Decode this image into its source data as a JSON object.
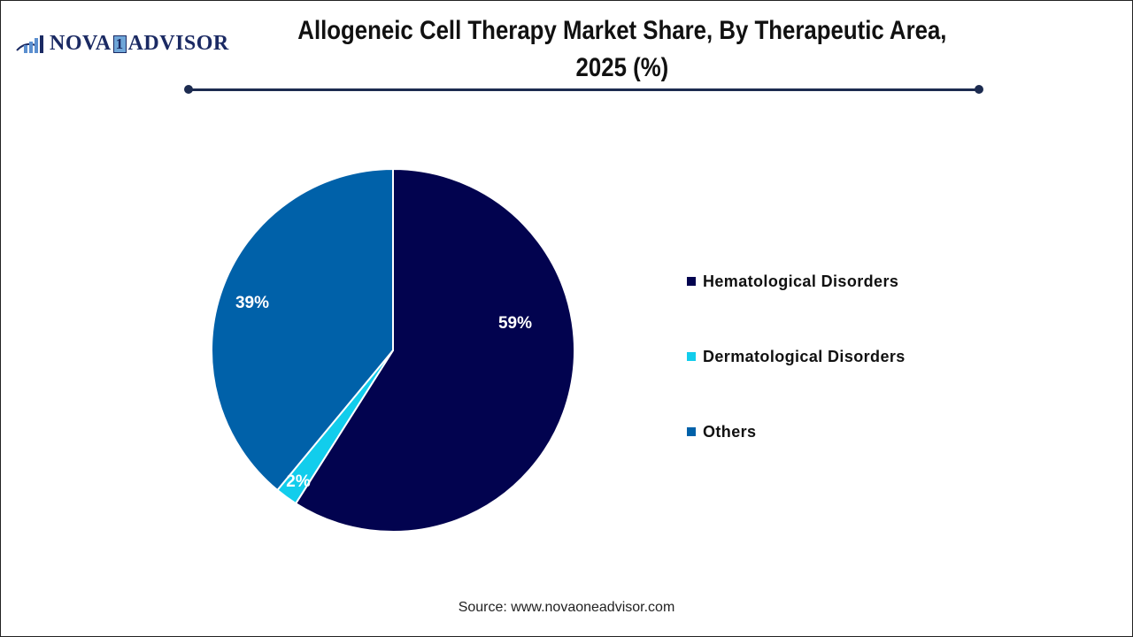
{
  "logo": {
    "text_left": "NOVA",
    "text_one": "1",
    "text_right": "ADVISOR"
  },
  "header": {
    "title_line1": "Allogeneic Cell Therapy Market Share, By Therapeutic Area,",
    "title_line2": "2025 (%)"
  },
  "legend": {
    "items": [
      {
        "label": "Hematological Disorders",
        "color": "#02034f"
      },
      {
        "label": "Dermatological Disorders",
        "color": "#12cdec"
      },
      {
        "label": "Others",
        "color": "#0061a9"
      }
    ]
  },
  "source": "Source: www.novaoneadvisor.com",
  "chart_data": {
    "type": "pie",
    "title": "Allogeneic Cell Therapy Market Share, By Therapeutic Area, 2025 (%)",
    "categories": [
      "Hematological Disorders",
      "Dermatological Disorders",
      "Others"
    ],
    "values": [
      59,
      2,
      39
    ],
    "labels": [
      "59%",
      "2%",
      "39%"
    ],
    "colors": [
      "#02034f",
      "#12cdec",
      "#0061a9"
    ],
    "start_angle": "12 o'clock, clockwise",
    "legend_position": "right"
  }
}
